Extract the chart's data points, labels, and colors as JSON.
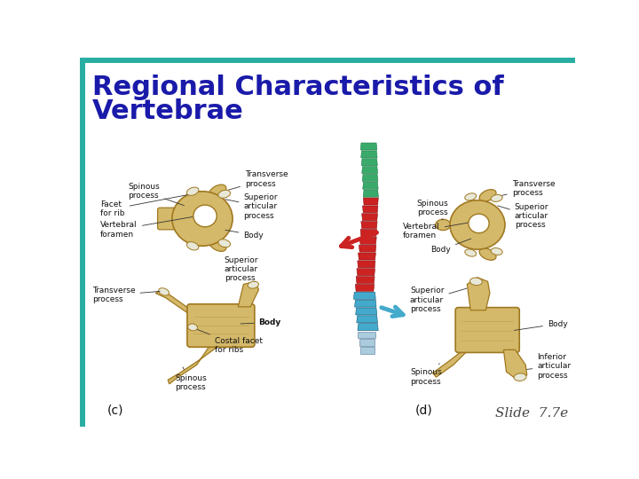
{
  "title_line1": "Regional Characteristics of",
  "title_line2": "Vertebrae",
  "title_color": "#1a1aaa",
  "title_fontsize": 22,
  "slide_number": "Slide  7.7e",
  "slide_num_color": "#444444",
  "slide_num_fontsize": 11,
  "top_bar_color": "#2aada3",
  "left_bar_color": "#2aada3",
  "bg_color": "#FFFFFF",
  "label_color": "#111111",
  "label_fontsize": 6.5,
  "bone_color": "#d4b96a",
  "bone_edge": "#a07820",
  "facet_color": "#e8e8d8",
  "spine_green": "#3aaa6a",
  "spine_red": "#cc2222",
  "spine_blue": "#44aacc",
  "caption_color": "#111111",
  "caption_fontsize": 10
}
